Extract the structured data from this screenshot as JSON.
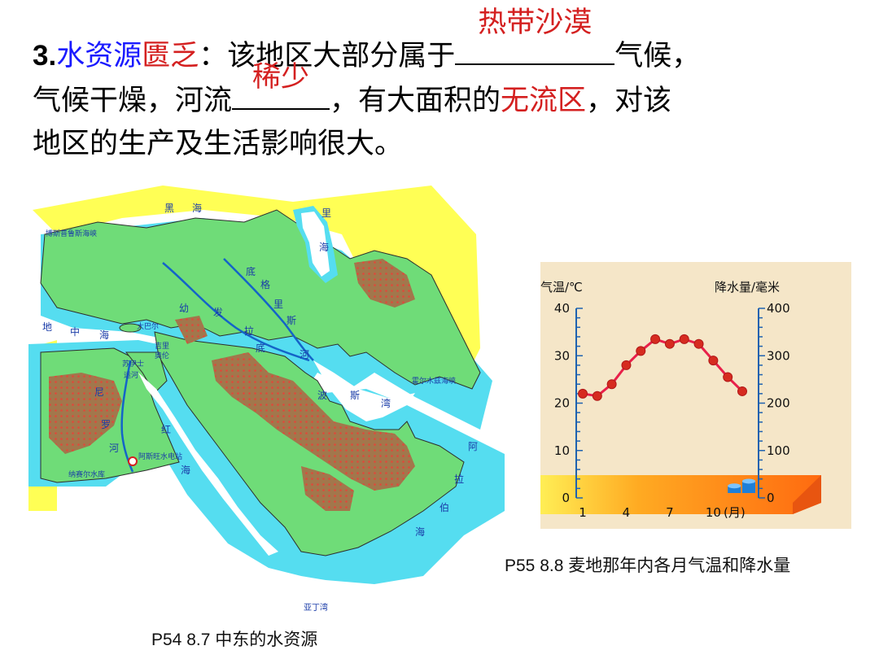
{
  "question": {
    "number": "3.",
    "topic_blue": "水资源",
    "topic_red": "匮乏",
    "colon": "：",
    "line1_text": "该地区大部分属于",
    "answer1": "热带沙漠",
    "line1_end": "气候，",
    "line2_start": "气候干燥，河流",
    "answer2": "稀少",
    "line2_mid": "，有大面积的",
    "line2_red": "无流区",
    "line2_end": "，对该",
    "line3": "地区的生产及生活影响很大。"
  },
  "map": {
    "caption": "P54 8.7 中东的水资源",
    "labels": {
      "black_sea_1": "黑",
      "black_sea_2": "海",
      "caspian_1": "里",
      "caspian_2": "海",
      "med_1": "地",
      "med_2": "中",
      "med_3": "海",
      "euph_1": "幼",
      "euph_2": "发",
      "euph_3": "拉",
      "euph_4": "底",
      "tigr_1": "底",
      "tigr_2": "格",
      "tigr_3": "里",
      "tigr_4": "斯",
      "tigr_5": "河",
      "persian_1": "波",
      "persian_2": "斯",
      "persian_3": "湾",
      "nile_1": "尼",
      "nile_2": "罗",
      "nile_3": "河",
      "red_1": "红",
      "red_2": "海",
      "arab_1": "阿",
      "arab_2": "拉",
      "arab_3": "伯",
      "arab_4": "海",
      "aden": "亚丁湾",
      "nasser": "纳赛尔水库",
      "aswan": "阿斯旺水电站",
      "suez_1": "苏伊士",
      "suez_2": "运河",
      "hormuz": "霍尔木兹海峡",
      "bosporus": "博斯普鲁斯海峡",
      "small_1": "大巴尔",
      "small_2": "吉里",
      "small_3": "奥伦"
    }
  },
  "chart_data": {
    "type": "line",
    "caption": "P55 8.8 麦地那年内各月气温和降水量",
    "left_axis_label": "气温/℃",
    "right_axis_label": "降水量/毫米",
    "x_unit": "(月)",
    "x_tick_labels": [
      "1",
      "4",
      "7",
      "10"
    ],
    "left_ticks": [
      "0",
      "10",
      "20",
      "30",
      "40"
    ],
    "right_ticks": [
      "0",
      "100",
      "200",
      "300",
      "400"
    ],
    "ylim": [
      0,
      40
    ],
    "y2lim": [
      0,
      400
    ],
    "x": [
      1,
      2,
      3,
      4,
      5,
      6,
      7,
      8,
      9,
      10,
      11,
      12
    ],
    "series": [
      {
        "kind": "line",
        "values": [
          22,
          21.5,
          24,
          28,
          31,
          33.5,
          32.5,
          33.5,
          32.5,
          29,
          25.5,
          22.5
        ]
      },
      {
        "kind": "bar",
        "values": [
          0,
          0,
          0,
          0,
          0,
          0,
          0,
          0,
          0,
          0,
          15,
          25
        ]
      }
    ],
    "colors": {
      "line": "#e8204a",
      "points": "#d62b20",
      "bar": "#1e7fd8",
      "axis": "#1e62b0",
      "panel": "#f5e6c8"
    }
  }
}
